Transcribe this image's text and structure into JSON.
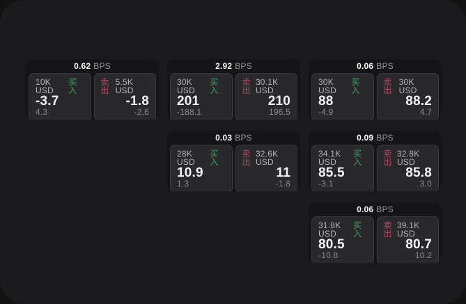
{
  "labels": {
    "bps": "BPS",
    "buy": "买入",
    "sell": "卖出"
  },
  "colors": {
    "page_bg": "#1b1b1d",
    "outer_bg": "#121213",
    "card_bg": "#151517",
    "pane_bg": "#29292c",
    "buy_green": "#3fa061",
    "sell_red": "#b34b60"
  },
  "cards": [
    {
      "bps": "0.62",
      "buy": {
        "size": "10K USD",
        "value": "-3.7",
        "delta": "4.3"
      },
      "sell": {
        "size": "5.5K USD",
        "value": "-1.8",
        "delta": "-2.6"
      }
    },
    {
      "bps": "2.92",
      "buy": {
        "size": "30K USD",
        "value": "201",
        "delta": "-188.1"
      },
      "sell": {
        "size": "30.1K USD",
        "value": "210",
        "delta": "196.5"
      }
    },
    {
      "bps": "0.06",
      "buy": {
        "size": "30K USD",
        "value": "88",
        "delta": "-4.9"
      },
      "sell": {
        "size": "30K USD",
        "value": "88.2",
        "delta": "4.7"
      }
    },
    {
      "bps": "0.03",
      "buy": {
        "size": "28K USD",
        "value": "10.9",
        "delta": "1.3"
      },
      "sell": {
        "size": "32.6K USD",
        "value": "11",
        "delta": "-1.8"
      }
    },
    {
      "bps": "0.09",
      "buy": {
        "size": "34.1K USD",
        "value": "85.5",
        "delta": "-3.1"
      },
      "sell": {
        "size": "32.8K USD",
        "value": "85.8",
        "delta": "3.0"
      }
    },
    {
      "bps": "0.06",
      "buy": {
        "size": "31.8K USD",
        "value": "80.5",
        "delta": "-10.8"
      },
      "sell": {
        "size": "39.1K USD",
        "value": "80.7",
        "delta": "10.2"
      }
    }
  ]
}
